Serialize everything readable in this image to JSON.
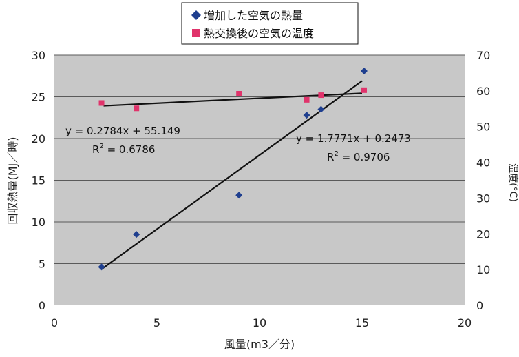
{
  "chart_data": {
    "type": "scatter",
    "xlabel": "風量(m3／分)",
    "ylabel": "回収熱量(MJ／時)",
    "y2label": "温度(°C)",
    "xlim": [
      0,
      20
    ],
    "ylim": [
      0,
      30
    ],
    "y2lim": [
      0,
      70
    ],
    "xticks": [
      0,
      5,
      10,
      15,
      20
    ],
    "yticks": [
      0,
      5,
      10,
      15,
      20,
      25,
      30
    ],
    "y2ticks": [
      0,
      10,
      20,
      30,
      40,
      50,
      60,
      70
    ],
    "grid": "horizontal",
    "plot_background": "#c8c8c8",
    "legend": {
      "position": "top",
      "entries": [
        {
          "label": "増加した空気の熱量",
          "marker": "diamond",
          "color": "#1f3f8f"
        },
        {
          "label": "熱交換後の空気の温度",
          "marker": "square",
          "color": "#e0336b"
        }
      ]
    },
    "series": [
      {
        "name": "増加した空気の熱量",
        "axis": "left",
        "marker": "diamond",
        "color": "#1f3f8f",
        "points": [
          [
            2.3,
            4.6
          ],
          [
            4.0,
            8.5
          ],
          [
            9.0,
            13.2
          ],
          [
            12.3,
            22.8
          ],
          [
            13.0,
            23.5
          ],
          [
            15.1,
            28.1
          ]
        ],
        "trendline": {
          "x_range": [
            2.3,
            15.0
          ],
          "slope": 1.7771,
          "intercept": 0.2473
        },
        "equation": "y = 1.7771x + 0.2473",
        "r2_label": "R",
        "r2_value": " = 0.9706"
      },
      {
        "name": "熱交換後の空気の温度",
        "axis": "right",
        "marker": "square",
        "color": "#e0336b",
        "points": [
          [
            2.3,
            56.6
          ],
          [
            4.0,
            55.1
          ],
          [
            9.0,
            59.2
          ],
          [
            12.3,
            57.5
          ],
          [
            13.0,
            58.8
          ],
          [
            15.1,
            60.2
          ]
        ],
        "trendline": {
          "x_range": [
            2.4,
            15.0
          ],
          "slope": 0.2784,
          "intercept": 55.149
        },
        "equation": "y = 0.2784x + 55.149",
        "r2_label": "R",
        "r2_value": " = 0.6786"
      }
    ]
  }
}
